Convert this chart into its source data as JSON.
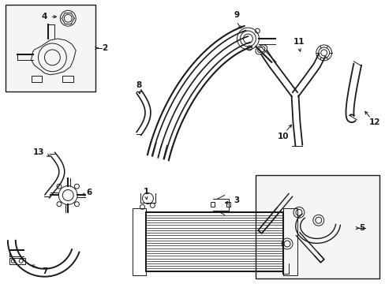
{
  "bg_color": "#ffffff",
  "line_color": "#1a1a1a",
  "gray_fill": "#f0f0f0",
  "lw_hose": 1.5,
  "lw_thin": 0.7,
  "lw_thick": 2.2,
  "fontsize": 7.5
}
